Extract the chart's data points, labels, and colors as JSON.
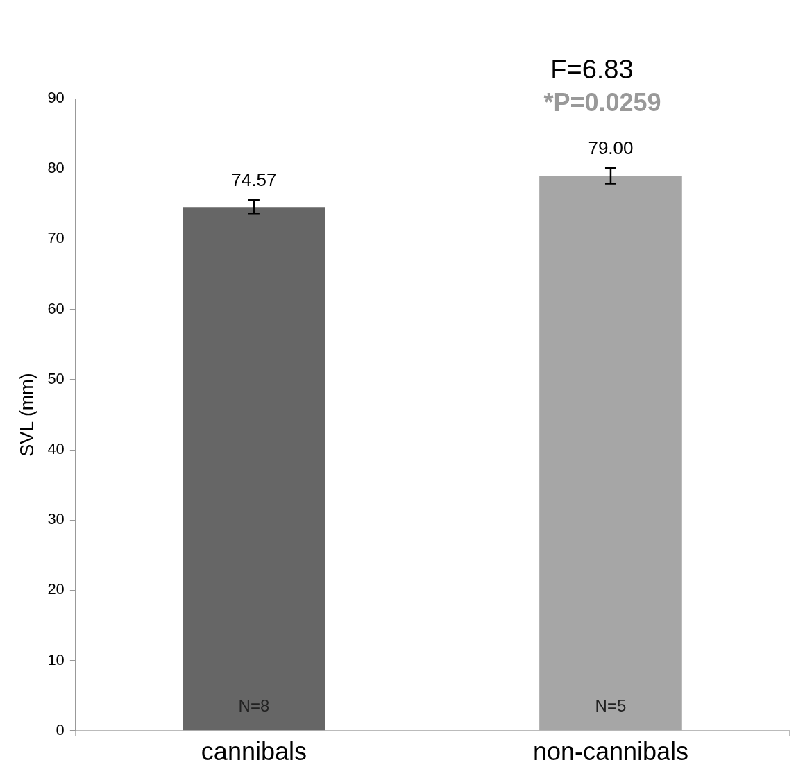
{
  "chart_data": {
    "type": "bar",
    "ylabel": "SVL (mm)",
    "categories": [
      "cannibals",
      "non-cannibals"
    ],
    "values": [
      74.57,
      79.0
    ],
    "colors": [
      "#666666",
      "#a6a6a6"
    ],
    "errors": [
      1.0,
      1.1
    ],
    "value_labels": [
      "74.57",
      "79.00"
    ],
    "ylim": [
      0,
      90
    ],
    "yticks": [
      0,
      10,
      20,
      30,
      40,
      50,
      60,
      70,
      80,
      90
    ],
    "grid": false,
    "legend": false,
    "annotations": [
      "F=6.83",
      "*P=0.0259",
      "N=8",
      "N=5"
    ]
  }
}
